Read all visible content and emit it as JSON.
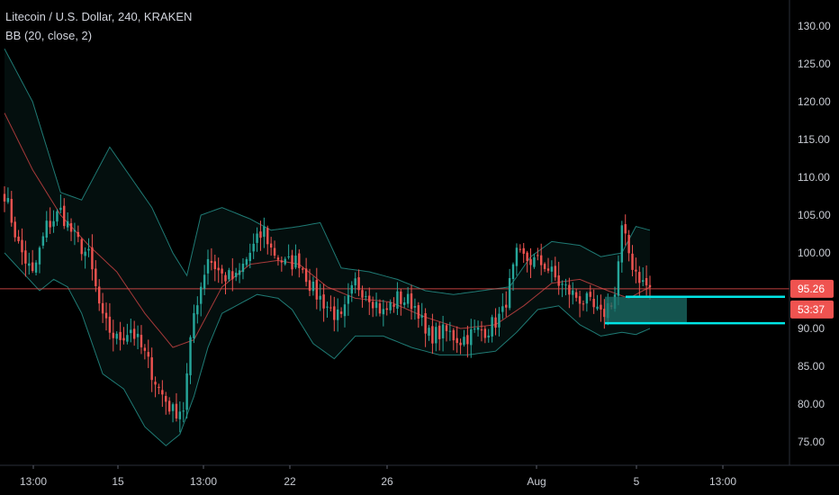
{
  "legend": {
    "title": "Litecoin / U.S. Dollar, 240, KRAKEN",
    "indicator": "BB (20, close, 2)"
  },
  "colors": {
    "background": "#000000",
    "up": "#26a69a",
    "down": "#ef5350",
    "bb_band": "#1f7a74",
    "bb_basis": "#a83a3a",
    "price_line": "#ef5350",
    "zone_fill": "#1b6f68",
    "zone_line": "#00e5e5",
    "axis_text": "#c9ccd3"
  },
  "chart_data": {
    "type": "candlestick",
    "title": "Litecoin / U.S. Dollar, 240, KRAKEN",
    "indicator": "BB (20, close, 2)",
    "ylim": [
      72,
      133
    ],
    "y_ticks": [
      75,
      80,
      85,
      90,
      95,
      100,
      105,
      110,
      115,
      120,
      125,
      130
    ],
    "y_tick_labels": [
      "75.00",
      "80.00",
      "85.00",
      "90.00",
      "95.00",
      "100.00",
      "105.00",
      "110.00",
      "115.00",
      "120.00",
      "125.00",
      "130.00"
    ],
    "x_ticks": [
      "13:00",
      "15",
      "13:00",
      "22",
      "26",
      "Aug",
      "5",
      "13:00"
    ],
    "last_price": 95.26,
    "last_price_label": "95.26",
    "countdown_label": "53:37",
    "zone": {
      "top": 94.2,
      "bottom": 90.7
    },
    "candle_keyframes": [
      [
        0,
        108.0
      ],
      [
        4,
        101.0
      ],
      [
        8,
        97.0
      ],
      [
        12,
        103.5
      ],
      [
        16,
        105.5
      ],
      [
        20,
        102.0
      ],
      [
        24,
        99.5
      ],
      [
        28,
        91.0
      ],
      [
        32,
        88.5
      ],
      [
        36,
        90.0
      ],
      [
        40,
        86.5
      ],
      [
        44,
        82.0
      ],
      [
        48,
        79.0
      ],
      [
        51,
        79.5
      ],
      [
        54,
        92.0
      ],
      [
        58,
        99.5
      ],
      [
        62,
        97.0
      ],
      [
        66,
        96.5
      ],
      [
        70,
        100.0
      ],
      [
        74,
        103.0
      ],
      [
        76,
        100.5
      ],
      [
        80,
        98.5
      ],
      [
        84,
        99.0
      ],
      [
        88,
        95.0
      ],
      [
        92,
        93.0
      ],
      [
        96,
        91.0
      ],
      [
        100,
        96.0
      ],
      [
        104,
        94.5
      ],
      [
        108,
        92.0
      ],
      [
        112,
        94.0
      ],
      [
        116,
        93.5
      ],
      [
        118,
        92.5
      ],
      [
        120,
        89.0
      ],
      [
        126,
        89.5
      ],
      [
        130,
        88.5
      ],
      [
        134,
        89.5
      ],
      [
        138,
        90.0
      ],
      [
        142,
        92.0
      ],
      [
        146,
        99.5
      ],
      [
        150,
        99.0
      ],
      [
        154,
        98.5
      ],
      [
        158,
        96.0
      ],
      [
        162,
        94.5
      ],
      [
        166,
        93.5
      ],
      [
        170,
        91.5
      ],
      [
        174,
        94.5
      ],
      [
        176,
        103.0
      ],
      [
        179,
        98.5
      ],
      [
        182,
        96.0
      ],
      [
        184,
        95.3
      ]
    ],
    "bb_upper_keyframes": [
      [
        0,
        127.0
      ],
      [
        8,
        120.0
      ],
      [
        16,
        108.0
      ],
      [
        22,
        107.0
      ],
      [
        30,
        114.0
      ],
      [
        36,
        110.0
      ],
      [
        42,
        106.0
      ],
      [
        48,
        100.0
      ],
      [
        52,
        97.0
      ],
      [
        56,
        105.0
      ],
      [
        62,
        106.0
      ],
      [
        70,
        104.5
      ],
      [
        76,
        103.0
      ],
      [
        84,
        103.5
      ],
      [
        90,
        104.0
      ],
      [
        96,
        98.0
      ],
      [
        104,
        97.5
      ],
      [
        112,
        96.5
      ],
      [
        120,
        95.0
      ],
      [
        128,
        94.5
      ],
      [
        136,
        95.0
      ],
      [
        144,
        95.5
      ],
      [
        150,
        99.5
      ],
      [
        156,
        101.5
      ],
      [
        164,
        101.0
      ],
      [
        170,
        99.5
      ],
      [
        176,
        100.0
      ],
      [
        180,
        103.5
      ],
      [
        184,
        103.0
      ]
    ],
    "bb_lower_keyframes": [
      [
        0,
        100.0
      ],
      [
        6,
        97.0
      ],
      [
        10,
        95.0
      ],
      [
        14,
        96.5
      ],
      [
        18,
        95.5
      ],
      [
        22,
        92.0
      ],
      [
        28,
        84.0
      ],
      [
        34,
        82.0
      ],
      [
        40,
        77.0
      ],
      [
        46,
        74.5
      ],
      [
        50,
        76.0
      ],
      [
        54,
        81.0
      ],
      [
        58,
        87.5
      ],
      [
        62,
        92.0
      ],
      [
        66,
        93.0
      ],
      [
        72,
        94.5
      ],
      [
        78,
        94.0
      ],
      [
        82,
        92.5
      ],
      [
        88,
        88.0
      ],
      [
        94,
        86.0
      ],
      [
        100,
        89.0
      ],
      [
        108,
        89.0
      ],
      [
        116,
        87.5
      ],
      [
        124,
        86.5
      ],
      [
        132,
        86.5
      ],
      [
        140,
        87.0
      ],
      [
        146,
        89.5
      ],
      [
        152,
        92.5
      ],
      [
        158,
        93.0
      ],
      [
        164,
        90.5
      ],
      [
        170,
        89.0
      ],
      [
        176,
        89.5
      ],
      [
        180,
        89.2
      ],
      [
        184,
        90.0
      ]
    ],
    "bb_basis_keyframes": [
      [
        0,
        118.5
      ],
      [
        8,
        111.0
      ],
      [
        16,
        105.0
      ],
      [
        24,
        101.0
      ],
      [
        32,
        97.5
      ],
      [
        40,
        92.0
      ],
      [
        48,
        87.5
      ],
      [
        54,
        88.5
      ],
      [
        62,
        95.5
      ],
      [
        70,
        98.5
      ],
      [
        78,
        99.0
      ],
      [
        84,
        98.5
      ],
      [
        92,
        95.5
      ],
      [
        100,
        94.0
      ],
      [
        110,
        93.5
      ],
      [
        120,
        91.5
      ],
      [
        130,
        90.0
      ],
      [
        140,
        90.5
      ],
      [
        148,
        93.0
      ],
      [
        156,
        96.0
      ],
      [
        164,
        96.5
      ],
      [
        172,
        95.0
      ],
      [
        178,
        94.0
      ],
      [
        184,
        95.5
      ]
    ],
    "candle_count": 185
  }
}
